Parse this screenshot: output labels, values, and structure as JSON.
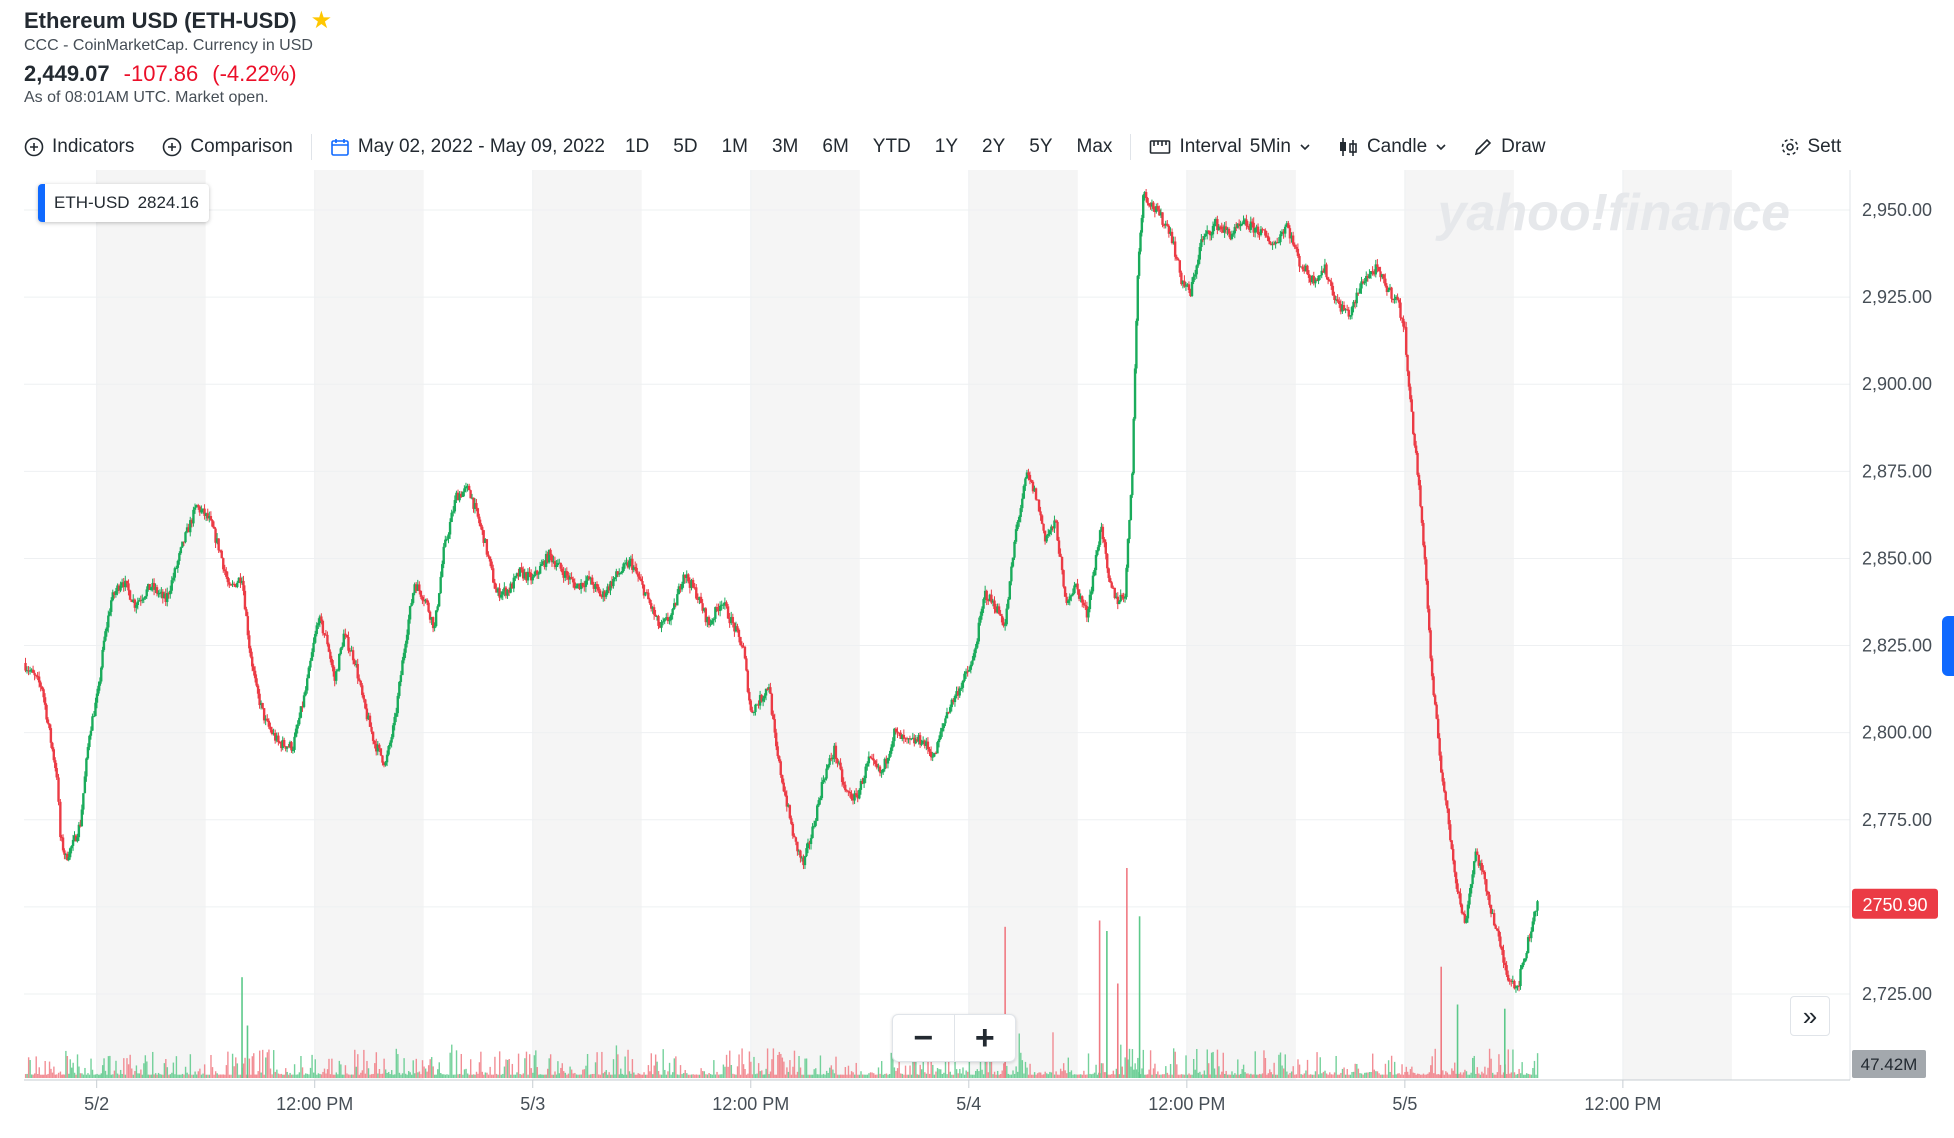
{
  "header": {
    "title": "Ethereum USD (ETH-USD)",
    "subtitle": "CCC - CoinMarketCap. Currency in USD",
    "price": "2,449.07",
    "change": "-107.86",
    "change_pct": "(-4.22%)",
    "as_of": "As of 08:01AM UTC. Market open."
  },
  "toolbar": {
    "indicators": "Indicators",
    "comparison": "Comparison",
    "date_range": "May 02, 2022 - May 09, 2022",
    "ranges": [
      "1D",
      "5D",
      "1M",
      "3M",
      "6M",
      "YTD",
      "1Y",
      "2Y",
      "5Y",
      "Max"
    ],
    "interval_label": "Interval",
    "interval_value": "5Min",
    "chart_type": "Candle",
    "draw": "Draw",
    "settings": "Sett"
  },
  "badge": {
    "symbol": "ETH-USD",
    "value": "2824.16"
  },
  "watermark": "yahoo!finance",
  "colors": {
    "up": "#1aab5b",
    "down": "#eb3b45",
    "band": "#f5f5f5",
    "grid": "#eef0f2",
    "accent": "#0f69ff"
  },
  "chart_data": {
    "type": "candlestick",
    "interval": "5Min",
    "y_ticks": [
      "2,950.00",
      "2,925.00",
      "2,900.00",
      "2,875.00",
      "2,850.00",
      "2,825.00",
      "2,800.00",
      "2,775.00",
      "2,750.00",
      "2,725.00"
    ],
    "ylim": [
      2715,
      2961
    ],
    "x_labels": [
      "5/2",
      "12:00 PM",
      "5/3",
      "12:00 PM",
      "5/4",
      "12:00 PM",
      "5/5",
      "12:00 PM"
    ],
    "x_label_hours": [
      24,
      36,
      48,
      60,
      72,
      84,
      96,
      108
    ],
    "x_range_hours": [
      20,
      120.5
    ],
    "shaded_hours": [
      [
        24,
        30
      ],
      [
        36,
        42
      ],
      [
        48,
        54
      ],
      [
        60,
        66
      ],
      [
        72,
        78
      ],
      [
        84,
        90
      ],
      [
        96,
        102
      ],
      [
        108,
        114
      ]
    ],
    "last_price": "2750.90",
    "volume_label": "47.42M",
    "price_path": [
      {
        "h": 20.0,
        "p": 2820
      },
      {
        "h": 21.0,
        "p": 2813
      },
      {
        "h": 21.4,
        "p": 2800
      },
      {
        "h": 21.8,
        "p": 2788
      },
      {
        "h": 22.0,
        "p": 2770
      },
      {
        "h": 22.3,
        "p": 2764
      },
      {
        "h": 22.7,
        "p": 2768
      },
      {
        "h": 23.1,
        "p": 2774
      },
      {
        "h": 23.6,
        "p": 2800
      },
      {
        "h": 24.1,
        "p": 2812
      },
      {
        "h": 24.4,
        "p": 2826
      },
      {
        "h": 24.8,
        "p": 2838
      },
      {
        "h": 25.4,
        "p": 2844
      },
      {
        "h": 26.1,
        "p": 2837
      },
      {
        "h": 27.0,
        "p": 2842
      },
      {
        "h": 27.8,
        "p": 2838
      },
      {
        "h": 28.3,
        "p": 2846
      },
      {
        "h": 28.8,
        "p": 2855
      },
      {
        "h": 29.5,
        "p": 2865
      },
      {
        "h": 30.2,
        "p": 2861
      },
      {
        "h": 30.8,
        "p": 2852
      },
      {
        "h": 31.3,
        "p": 2841
      },
      {
        "h": 32.0,
        "p": 2845
      },
      {
        "h": 32.4,
        "p": 2825
      },
      {
        "h": 32.8,
        "p": 2812
      },
      {
        "h": 33.3,
        "p": 2803
      },
      {
        "h": 34.0,
        "p": 2797
      },
      {
        "h": 34.8,
        "p": 2796
      },
      {
        "h": 35.5,
        "p": 2812
      },
      {
        "h": 36.2,
        "p": 2833
      },
      {
        "h": 36.7,
        "p": 2826
      },
      {
        "h": 37.1,
        "p": 2815
      },
      {
        "h": 37.6,
        "p": 2828
      },
      {
        "h": 38.2,
        "p": 2821
      },
      {
        "h": 38.7,
        "p": 2808
      },
      {
        "h": 39.3,
        "p": 2797
      },
      {
        "h": 39.9,
        "p": 2791
      },
      {
        "h": 40.4,
        "p": 2803
      },
      {
        "h": 41.0,
        "p": 2827
      },
      {
        "h": 41.5,
        "p": 2843
      },
      {
        "h": 42.1,
        "p": 2838
      },
      {
        "h": 42.6,
        "p": 2830
      },
      {
        "h": 43.1,
        "p": 2852
      },
      {
        "h": 43.8,
        "p": 2868
      },
      {
        "h": 44.5,
        "p": 2870
      },
      {
        "h": 45.3,
        "p": 2856
      },
      {
        "h": 46.0,
        "p": 2840
      },
      {
        "h": 46.7,
        "p": 2841
      },
      {
        "h": 47.3,
        "p": 2846
      },
      {
        "h": 48.0,
        "p": 2844
      },
      {
        "h": 48.9,
        "p": 2851
      },
      {
        "h": 49.7,
        "p": 2846
      },
      {
        "h": 50.4,
        "p": 2842
      },
      {
        "h": 51.1,
        "p": 2844
      },
      {
        "h": 51.8,
        "p": 2839
      },
      {
        "h": 52.6,
        "p": 2845
      },
      {
        "h": 53.4,
        "p": 2849
      },
      {
        "h": 54.2,
        "p": 2840
      },
      {
        "h": 55.0,
        "p": 2830
      },
      {
        "h": 55.7,
        "p": 2834
      },
      {
        "h": 56.3,
        "p": 2846
      },
      {
        "h": 57.0,
        "p": 2840
      },
      {
        "h": 57.7,
        "p": 2831
      },
      {
        "h": 58.4,
        "p": 2838
      },
      {
        "h": 59.1,
        "p": 2830
      },
      {
        "h": 59.6,
        "p": 2824
      },
      {
        "h": 60.0,
        "p": 2806
      },
      {
        "h": 60.6,
        "p": 2810
      },
      {
        "h": 61.0,
        "p": 2814
      },
      {
        "h": 61.4,
        "p": 2795
      },
      {
        "h": 61.9,
        "p": 2782
      },
      {
        "h": 62.4,
        "p": 2769
      },
      {
        "h": 62.9,
        "p": 2762
      },
      {
        "h": 63.4,
        "p": 2772
      },
      {
        "h": 64.0,
        "p": 2787
      },
      {
        "h": 64.6,
        "p": 2795
      },
      {
        "h": 65.2,
        "p": 2783
      },
      {
        "h": 65.8,
        "p": 2781
      },
      {
        "h": 66.5,
        "p": 2792
      },
      {
        "h": 67.2,
        "p": 2788
      },
      {
        "h": 67.9,
        "p": 2800
      },
      {
        "h": 68.6,
        "p": 2797
      },
      {
        "h": 69.4,
        "p": 2798
      },
      {
        "h": 70.1,
        "p": 2793
      },
      {
        "h": 70.8,
        "p": 2806
      },
      {
        "h": 71.5,
        "p": 2813
      },
      {
        "h": 72.2,
        "p": 2820
      },
      {
        "h": 72.9,
        "p": 2840
      },
      {
        "h": 73.5,
        "p": 2836
      },
      {
        "h": 74.0,
        "p": 2831
      },
      {
        "h": 74.6,
        "p": 2858
      },
      {
        "h": 75.2,
        "p": 2874
      },
      {
        "h": 75.7,
        "p": 2868
      },
      {
        "h": 76.2,
        "p": 2856
      },
      {
        "h": 76.8,
        "p": 2860
      },
      {
        "h": 77.3,
        "p": 2838
      },
      {
        "h": 77.9,
        "p": 2842
      },
      {
        "h": 78.5,
        "p": 2834
      },
      {
        "h": 79.0,
        "p": 2850
      },
      {
        "h": 79.3,
        "p": 2860
      },
      {
        "h": 79.7,
        "p": 2843
      },
      {
        "h": 80.2,
        "p": 2838
      },
      {
        "h": 80.6,
        "p": 2840
      },
      {
        "h": 81.0,
        "p": 2876
      },
      {
        "h": 81.3,
        "p": 2932
      },
      {
        "h": 81.6,
        "p": 2955
      },
      {
        "h": 82.4,
        "p": 2949
      },
      {
        "h": 83.1,
        "p": 2944
      },
      {
        "h": 83.7,
        "p": 2930
      },
      {
        "h": 84.2,
        "p": 2926
      },
      {
        "h": 84.8,
        "p": 2941
      },
      {
        "h": 85.6,
        "p": 2946
      },
      {
        "h": 86.4,
        "p": 2943
      },
      {
        "h": 87.2,
        "p": 2946
      },
      {
        "h": 88.0,
        "p": 2944
      },
      {
        "h": 88.8,
        "p": 2940
      },
      {
        "h": 89.5,
        "p": 2946
      },
      {
        "h": 90.2,
        "p": 2935
      },
      {
        "h": 90.9,
        "p": 2930
      },
      {
        "h": 91.6,
        "p": 2933
      },
      {
        "h": 92.3,
        "p": 2923
      },
      {
        "h": 93.0,
        "p": 2920
      },
      {
        "h": 93.7,
        "p": 2930
      },
      {
        "h": 94.4,
        "p": 2933
      },
      {
        "h": 95.1,
        "p": 2927
      },
      {
        "h": 95.6,
        "p": 2924
      },
      {
        "h": 96.0,
        "p": 2915
      },
      {
        "h": 96.3,
        "p": 2895
      },
      {
        "h": 96.7,
        "p": 2875
      },
      {
        "h": 97.1,
        "p": 2850
      },
      {
        "h": 97.5,
        "p": 2815
      },
      {
        "h": 98.0,
        "p": 2790
      },
      {
        "h": 98.5,
        "p": 2770
      },
      {
        "h": 98.9,
        "p": 2755
      },
      {
        "h": 99.3,
        "p": 2745
      },
      {
        "h": 99.9,
        "p": 2766
      },
      {
        "h": 100.4,
        "p": 2757
      },
      {
        "h": 101.0,
        "p": 2744
      },
      {
        "h": 101.6,
        "p": 2731
      },
      {
        "h": 102.2,
        "p": 2727
      },
      {
        "h": 102.7,
        "p": 2738
      },
      {
        "h": 103.3,
        "p": 2752
      }
    ],
    "volume_spikes": [
      {
        "h": 32.0,
        "v": 0.48,
        "up": true
      },
      {
        "h": 74.0,
        "v": 0.72,
        "up": false
      },
      {
        "h": 79.2,
        "v": 0.75,
        "up": false
      },
      {
        "h": 80.7,
        "v": 1.0,
        "up": false
      },
      {
        "h": 81.4,
        "v": 0.77,
        "up": true
      },
      {
        "h": 79.6,
        "v": 0.7,
        "up": true
      },
      {
        "h": 98.0,
        "v": 0.53,
        "up": false
      },
      {
        "h": 98.9,
        "v": 0.35,
        "up": true
      },
      {
        "h": 101.5,
        "v": 0.33,
        "up": true
      },
      {
        "h": 32.3,
        "v": 0.25,
        "up": true
      },
      {
        "h": 80.2,
        "v": 0.45,
        "up": false
      }
    ]
  }
}
